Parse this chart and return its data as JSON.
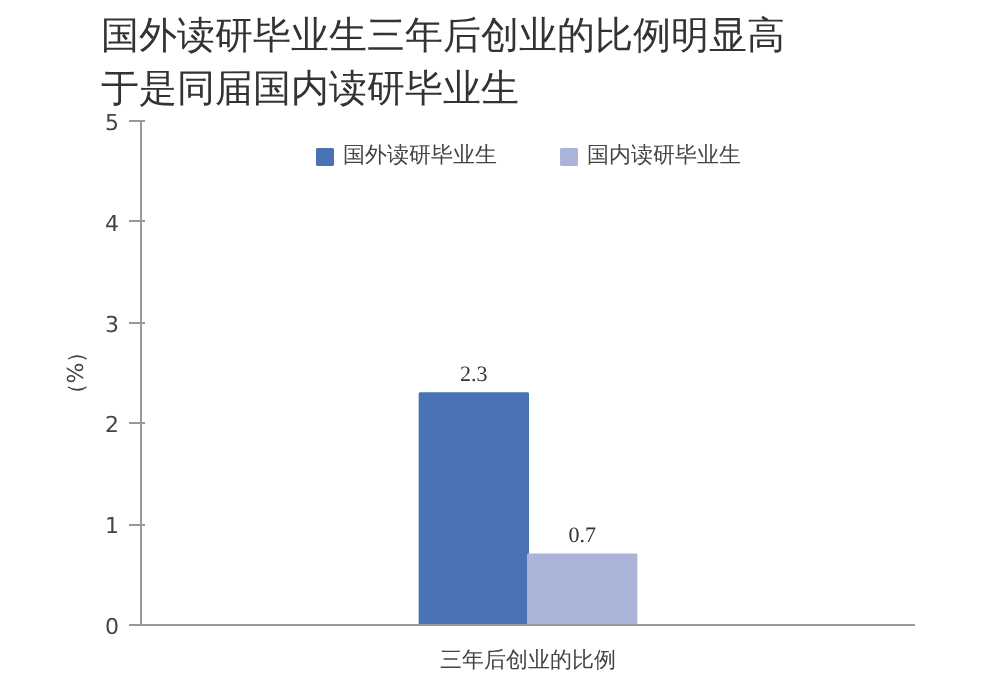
{
  "chart_data": {
    "type": "bar",
    "title": "国外读研毕业生三年后创业的比例明显高于是同届国内读研毕业生",
    "ylabel": "（%）",
    "categories": [
      "三年后创业的比例"
    ],
    "series": [
      {
        "name": "国外读研毕业生",
        "color": "#4a73b5",
        "values": [
          2.3
        ]
      },
      {
        "name": "国内读研毕业生",
        "color": "#aab4d8",
        "values": [
          0.7
        ]
      }
    ],
    "ylim": [
      0,
      5
    ],
    "yticks": [
      0,
      1,
      2,
      3,
      4,
      5
    ],
    "grid": false,
    "legend": "top",
    "data_labels": true
  }
}
